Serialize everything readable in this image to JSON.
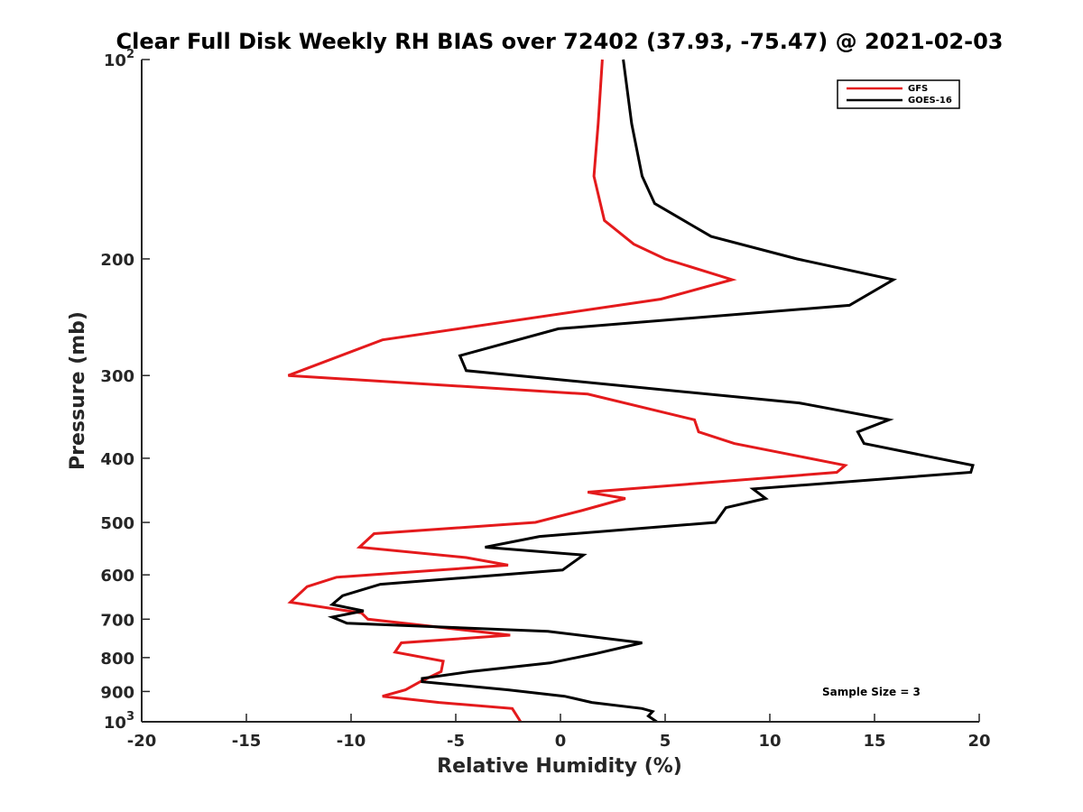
{
  "chart_data": {
    "type": "line",
    "title": "Clear Full Disk Weekly RH BIAS over 72402 (37.93, -75.47) @ 2021-02-03",
    "xlabel": "Relative Humidity (%)",
    "ylabel": "Pressure (mb)",
    "xlim": [
      -20,
      20
    ],
    "ylim": [
      100,
      1000
    ],
    "yscale": "log",
    "y_reversed": true,
    "x_ticks": [
      -20,
      -15,
      -10,
      -5,
      0,
      5,
      10,
      15,
      20
    ],
    "x_tick_labels": [
      "-20",
      "-15",
      "-10",
      "-5",
      "0",
      "5",
      "10",
      "15",
      "20"
    ],
    "y_ticks": [
      100,
      200,
      300,
      400,
      500,
      600,
      700,
      800,
      900,
      1000
    ],
    "y_tick_labels": [
      {
        "base": "10",
        "exp": "2"
      },
      {
        "base": "200",
        "exp": ""
      },
      {
        "base": "300",
        "exp": ""
      },
      {
        "base": "400",
        "exp": ""
      },
      {
        "base": "500",
        "exp": ""
      },
      {
        "base": "600",
        "exp": ""
      },
      {
        "base": "700",
        "exp": ""
      },
      {
        "base": "800",
        "exp": ""
      },
      {
        "base": "900",
        "exp": ""
      },
      {
        "base": "10",
        "exp": "3"
      }
    ],
    "legend_position": "top-right",
    "annotation": "Sample Size = 3",
    "series": [
      {
        "name": "GFS",
        "color": "#e41a1c",
        "points": [
          [
            2.0,
            100
          ],
          [
            1.8,
            125
          ],
          [
            1.6,
            150
          ],
          [
            2.1,
            175
          ],
          [
            3.5,
            190
          ],
          [
            5.0,
            200
          ],
          [
            8.2,
            215
          ],
          [
            4.8,
            230
          ],
          [
            -8.5,
            265
          ],
          [
            -13.0,
            300
          ],
          [
            1.3,
            320
          ],
          [
            6.4,
            350
          ],
          [
            6.6,
            365
          ],
          [
            8.3,
            380
          ],
          [
            13.6,
            410
          ],
          [
            13.2,
            420
          ],
          [
            1.3,
            450
          ],
          [
            3.1,
            460
          ],
          [
            1.0,
            480
          ],
          [
            -1.2,
            500
          ],
          [
            -8.9,
            520
          ],
          [
            -9.6,
            545
          ],
          [
            -4.5,
            565
          ],
          [
            -2.5,
            580
          ],
          [
            -10.7,
            605
          ],
          [
            -12.1,
            625
          ],
          [
            -12.9,
            660
          ],
          [
            -9.5,
            685
          ],
          [
            -9.2,
            700
          ],
          [
            -2.4,
            740
          ],
          [
            -7.6,
            760
          ],
          [
            -7.9,
            785
          ],
          [
            -5.6,
            810
          ],
          [
            -5.7,
            840
          ],
          [
            -6.7,
            870
          ],
          [
            -7.4,
            895
          ],
          [
            -8.5,
            915
          ],
          [
            -5.8,
            935
          ],
          [
            -2.3,
            955
          ],
          [
            -1.9,
            1000
          ]
        ]
      },
      {
        "name": "GOES-16",
        "color": "#000000",
        "points": [
          [
            3.0,
            100
          ],
          [
            3.4,
            125
          ],
          [
            3.9,
            150
          ],
          [
            4.5,
            165
          ],
          [
            7.2,
            185
          ],
          [
            11.3,
            200
          ],
          [
            15.9,
            215
          ],
          [
            13.8,
            235
          ],
          [
            -0.1,
            255
          ],
          [
            -4.8,
            280
          ],
          [
            -4.5,
            295
          ],
          [
            11.4,
            330
          ],
          [
            15.7,
            350
          ],
          [
            14.2,
            365
          ],
          [
            14.5,
            380
          ],
          [
            19.7,
            410
          ],
          [
            19.6,
            420
          ],
          [
            9.2,
            445
          ],
          [
            9.8,
            460
          ],
          [
            7.9,
            475
          ],
          [
            7.4,
            500
          ],
          [
            -1.0,
            525
          ],
          [
            -3.6,
            545
          ],
          [
            1.1,
            560
          ],
          [
            0.1,
            590
          ],
          [
            -8.6,
            620
          ],
          [
            -10.4,
            645
          ],
          [
            -10.9,
            665
          ],
          [
            -9.4,
            680
          ],
          [
            -10.9,
            695
          ],
          [
            -10.2,
            710
          ],
          [
            -0.6,
            730
          ],
          [
            3.9,
            760
          ],
          [
            1.6,
            790
          ],
          [
            -0.5,
            815
          ],
          [
            -4.3,
            840
          ],
          [
            -6.6,
            860
          ],
          [
            -6.6,
            870
          ],
          [
            -2.5,
            895
          ],
          [
            0.2,
            915
          ],
          [
            1.5,
            935
          ],
          [
            3.9,
            955
          ],
          [
            4.4,
            965
          ],
          [
            4.2,
            980
          ],
          [
            4.6,
            1000
          ]
        ]
      }
    ]
  }
}
